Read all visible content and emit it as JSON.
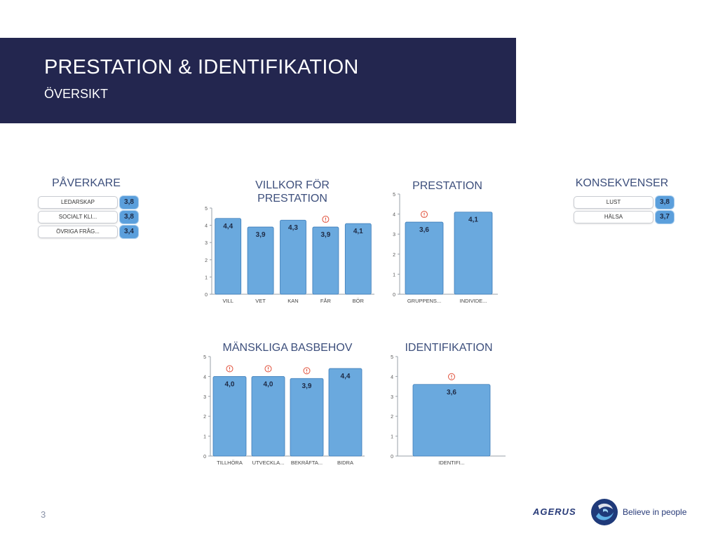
{
  "header": {
    "title": "PRESTATION & IDENTIFIKATION",
    "subtitle": "ÖVERSIKT"
  },
  "paverkare": {
    "title": "PÅVERKARE",
    "items": [
      {
        "label": "LEDARSKAP",
        "value": "3,8"
      },
      {
        "label": "SOCIALT KLI...",
        "value": "3,8"
      },
      {
        "label": "ÖVRIGA FRÅG...",
        "value": "3,4"
      }
    ]
  },
  "konsekvenser": {
    "title": "KONSEKVENSER",
    "items": [
      {
        "label": "LUST",
        "value": "3,8"
      },
      {
        "label": "HÄLSA",
        "value": "3,7"
      }
    ]
  },
  "colors": {
    "header_band": "#23264f",
    "bar_fill": "#6aa9de",
    "bar_stroke": "#3d7cb8",
    "warning": "#e0503a",
    "title_text": "#3d4f7c"
  },
  "chart_data": [
    {
      "id": "villkor",
      "type": "bar",
      "title": "VILLKOR FÖR PRESTATION",
      "categories": [
        "VILL",
        "VET",
        "KAN",
        "FÅR",
        "BÖR"
      ],
      "values": [
        4.4,
        3.9,
        4.3,
        3.9,
        4.1
      ],
      "labels": [
        "4,4",
        "3,9",
        "4,3",
        "3,9",
        "4,1"
      ],
      "warnings": [
        false,
        false,
        false,
        true,
        false
      ],
      "yticks": [
        "0",
        "1",
        "2",
        "3",
        "4",
        "5"
      ],
      "ylim": [
        0,
        5
      ]
    },
    {
      "id": "prestation",
      "type": "bar",
      "title": "PRESTATION",
      "categories": [
        "GRUPPENS...",
        "INDIVIDE..."
      ],
      "values": [
        3.6,
        4.1
      ],
      "labels": [
        "3,6",
        "4,1"
      ],
      "warnings": [
        true,
        false
      ],
      "yticks": [
        "0",
        "1",
        "2",
        "3",
        "4",
        "5"
      ],
      "ylim": [
        0,
        5
      ]
    },
    {
      "id": "basbehov",
      "type": "bar",
      "title": "MÄNSKLIGA BASBEHOV",
      "categories": [
        "TILLHÖRA",
        "UTVECKLA...",
        "BEKRÄFTA...",
        "BIDRA"
      ],
      "values": [
        4.0,
        4.0,
        3.9,
        4.4
      ],
      "labels": [
        "4,0",
        "4,0",
        "3,9",
        "4,4"
      ],
      "warnings": [
        true,
        true,
        true,
        false
      ],
      "yticks": [
        "0",
        "1",
        "2",
        "3",
        "4",
        "5"
      ],
      "ylim": [
        0,
        5
      ]
    },
    {
      "id": "identifikation",
      "type": "bar",
      "title": "IDENTIFIKATION",
      "categories": [
        "IDENTIFI..."
      ],
      "values": [
        3.6
      ],
      "labels": [
        "3,6"
      ],
      "warnings": [
        true
      ],
      "yticks": [
        "0",
        "1",
        "2",
        "3",
        "4",
        "5"
      ],
      "ylim": [
        0,
        5
      ]
    }
  ],
  "footer": {
    "page_number": "3",
    "logo_text": "AGERUS",
    "logo_mark": "agerus-swirl-icon",
    "tagline": "Believe in people"
  }
}
